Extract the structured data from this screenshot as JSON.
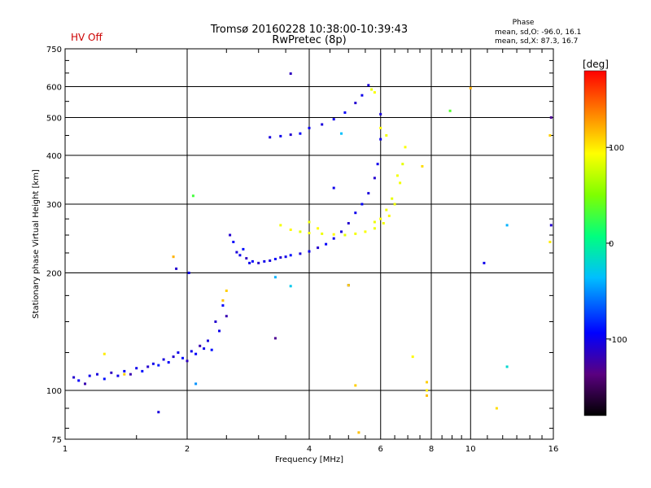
{
  "header": {
    "title_line1": "Tromsø 20160228 10:38:00-10:39:43",
    "title_line2": "RwPretec (8p)",
    "status": "HV Off",
    "status_color": "#cc0000"
  },
  "phase_stats": {
    "heading": "Phase",
    "line_o": "mean, sd,O: -96.0, 16.1",
    "line_x": "mean, sd,X: 87.3, 16.7"
  },
  "colorbar": {
    "unit_label": "[deg]",
    "ticks": [
      "100",
      "0",
      "-100"
    ],
    "tick_values": [
      100,
      0,
      -100
    ],
    "range": [
      -180,
      180
    ]
  },
  "chart_data": {
    "type": "scatter",
    "xlabel": "Frequency [MHz]",
    "ylabel": "Stationary phase Virtual Height [km]",
    "xscale": "log",
    "yscale": "log",
    "xlim": [
      1,
      16
    ],
    "ylim": [
      75,
      750
    ],
    "xticks": [
      {
        "value": 1,
        "label": "1"
      },
      {
        "value": 2,
        "label": "2"
      },
      {
        "value": 4,
        "label": "4"
      },
      {
        "value": 6,
        "label": "6"
      },
      {
        "value": 8,
        "label": "8"
      },
      {
        "value": 10,
        "label": "10"
      },
      {
        "value": 16,
        "label": "16"
      }
    ],
    "yticks": [
      {
        "value": 75,
        "label": "75"
      },
      {
        "value": 100,
        "label": "100"
      },
      {
        "value": 200,
        "label": "200"
      },
      {
        "value": 300,
        "label": "300"
      },
      {
        "value": 400,
        "label": "400"
      },
      {
        "value": 500,
        "label": "500"
      },
      {
        "value": 600,
        "label": "600"
      },
      {
        "value": 750,
        "label": "750"
      }
    ],
    "grid": true,
    "colorbar_range": [
      -180,
      180
    ],
    "series": [
      {
        "values": [
          [
            1.05,
            108,
            -110
          ],
          [
            1.08,
            106,
            -95
          ],
          [
            1.12,
            104,
            -120
          ],
          [
            1.15,
            109,
            -100
          ],
          [
            1.2,
            110,
            -105
          ],
          [
            1.25,
            107,
            -90
          ],
          [
            1.3,
            111,
            -115
          ],
          [
            1.35,
            109,
            -100
          ],
          [
            1.4,
            112,
            -95
          ],
          [
            1.45,
            110,
            -120
          ],
          [
            1.5,
            114,
            -100
          ],
          [
            1.55,
            112,
            -90
          ],
          [
            1.6,
            115,
            -110
          ],
          [
            1.65,
            117,
            -100
          ],
          [
            1.7,
            116,
            -85
          ],
          [
            1.75,
            120,
            -105
          ],
          [
            1.8,
            118,
            -95
          ],
          [
            1.85,
            122,
            -110
          ],
          [
            1.9,
            125,
            -100
          ],
          [
            1.95,
            121,
            -90
          ],
          [
            2.0,
            119,
            -115
          ],
          [
            2.05,
            126,
            -100
          ],
          [
            2.1,
            124,
            -95
          ],
          [
            2.15,
            130,
            -120
          ],
          [
            2.2,
            128,
            -100
          ],
          [
            2.25,
            134,
            -105
          ],
          [
            2.3,
            127,
            -90
          ],
          [
            2.35,
            150,
            -110
          ],
          [
            2.4,
            142,
            -100
          ],
          [
            2.45,
            165,
            -95
          ],
          [
            2.5,
            155,
            -120
          ],
          [
            2.55,
            250,
            -110
          ],
          [
            2.6,
            240,
            -95
          ],
          [
            2.65,
            226,
            -105
          ],
          [
            2.7,
            222,
            -100
          ],
          [
            2.75,
            230,
            -90
          ],
          [
            2.8,
            218,
            -115
          ],
          [
            2.85,
            212,
            -100
          ],
          [
            2.9,
            214,
            -95
          ],
          [
            3.0,
            212,
            -110
          ],
          [
            3.1,
            214,
            -100
          ],
          [
            3.2,
            215,
            -105
          ],
          [
            3.3,
            217,
            -95
          ],
          [
            3.4,
            219,
            -110
          ],
          [
            3.5,
            220,
            -100
          ],
          [
            3.6,
            222,
            -90
          ],
          [
            3.8,
            224,
            -105
          ],
          [
            4.0,
            227,
            -100
          ],
          [
            4.2,
            232,
            -110
          ],
          [
            4.4,
            237,
            -95
          ],
          [
            4.6,
            245,
            -100
          ],
          [
            4.8,
            255,
            -105
          ],
          [
            5.0,
            268,
            -110
          ],
          [
            5.2,
            285,
            -100
          ],
          [
            5.4,
            300,
            -95
          ],
          [
            5.6,
            320,
            -105
          ],
          [
            5.8,
            350,
            -110
          ],
          [
            5.9,
            380,
            -100
          ],
          [
            6.0,
            440,
            -100
          ],
          [
            6.0,
            510,
            -105
          ],
          [
            3.2,
            445,
            -105
          ],
          [
            3.4,
            448,
            -100
          ],
          [
            3.6,
            452,
            -110
          ],
          [
            3.8,
            455,
            -95
          ],
          [
            4.0,
            470,
            -100
          ],
          [
            4.3,
            480,
            -105
          ],
          [
            4.6,
            495,
            -100
          ],
          [
            4.9,
            515,
            -95
          ],
          [
            5.2,
            545,
            -110
          ],
          [
            5.4,
            570,
            -100
          ],
          [
            5.6,
            605,
            -105
          ],
          [
            3.6,
            648,
            -115
          ],
          [
            2.02,
            200,
            -100
          ],
          [
            1.88,
            205,
            -110
          ],
          [
            5.0,
            186,
            -120
          ],
          [
            3.3,
            136,
            -130
          ],
          [
            1.7,
            88,
            -105
          ],
          [
            4.6,
            330,
            -100
          ],
          [
            10.8,
            212,
            -100
          ],
          [
            15.8,
            500,
            -130
          ],
          [
            15.8,
            265,
            -110
          ]
        ]
      },
      {
        "values": [
          [
            3.4,
            265,
            90
          ],
          [
            3.6,
            258,
            95
          ],
          [
            3.8,
            255,
            85
          ],
          [
            4.0,
            253,
            90
          ],
          [
            4.3,
            252,
            88
          ],
          [
            4.6,
            251,
            95
          ],
          [
            4.9,
            250,
            85
          ],
          [
            5.2,
            252,
            90
          ],
          [
            5.5,
            255,
            92
          ],
          [
            5.8,
            260,
            88
          ],
          [
            6.1,
            268,
            90
          ],
          [
            6.3,
            280,
            95
          ],
          [
            6.5,
            300,
            88
          ],
          [
            6.7,
            340,
            90
          ],
          [
            6.8,
            380,
            85
          ],
          [
            6.9,
            420,
            92
          ],
          [
            5.8,
            270,
            88
          ],
          [
            6.0,
            275,
            92
          ],
          [
            6.2,
            290,
            90
          ],
          [
            6.4,
            310,
            85
          ],
          [
            6.6,
            355,
            90
          ],
          [
            6.0,
            470,
            95
          ],
          [
            6.2,
            450,
            90
          ],
          [
            5.7,
            590,
            85
          ],
          [
            5.8,
            580,
            92
          ],
          [
            5.0,
            186,
            110
          ],
          [
            4.2,
            260,
            95
          ],
          [
            4.0,
            270,
            88
          ],
          [
            2.45,
            170,
            115
          ],
          [
            2.5,
            180,
            110
          ],
          [
            1.85,
            220,
            120
          ],
          [
            7.6,
            375,
            105
          ],
          [
            7.2,
            122,
            95
          ],
          [
            7.8,
            105,
            110
          ],
          [
            7.8,
            100,
            100
          ],
          [
            7.8,
            97,
            115
          ],
          [
            5.3,
            78,
            115
          ],
          [
            5.2,
            103,
            110
          ],
          [
            11.6,
            90,
            105
          ],
          [
            10.0,
            595,
            120
          ],
          [
            15.7,
            450,
            110
          ],
          [
            15.7,
            240,
            100
          ],
          [
            1.25,
            124,
            100
          ],
          [
            1.4,
            110,
            110
          ]
        ]
      },
      {
        "values": [
          [
            2.07,
            315,
            30
          ],
          [
            8.9,
            520,
            35
          ],
          [
            3.3,
            195,
            -40
          ],
          [
            3.6,
            185,
            -30
          ],
          [
            12.3,
            115,
            -20
          ],
          [
            12.3,
            265,
            -40
          ],
          [
            2.1,
            104,
            -50
          ],
          [
            4.8,
            455,
            -35
          ]
        ]
      }
    ]
  }
}
